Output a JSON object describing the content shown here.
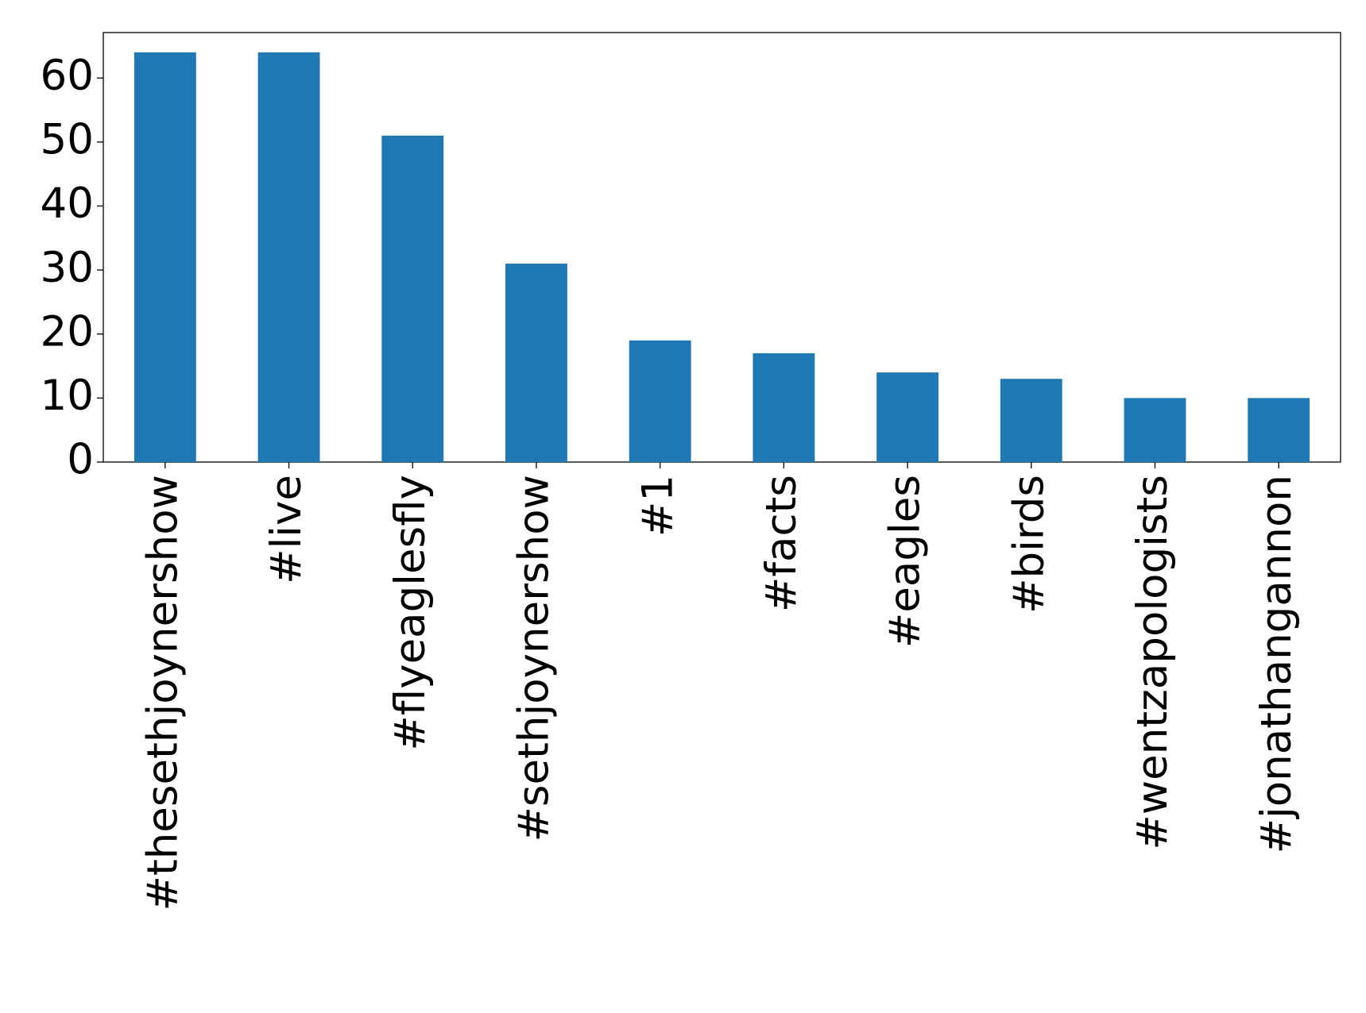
{
  "chart_data": {
    "type": "bar",
    "categories": [
      "#thesethjoynershow",
      "#live",
      "#flyeaglesfly",
      "#sethjoynershow",
      "#1",
      "#facts",
      "#eagles",
      "#birds",
      "#wentzapologists",
      "#jonathangannon"
    ],
    "values": [
      64,
      64,
      51,
      31,
      19,
      17,
      14,
      13,
      10,
      10
    ],
    "color": "#1f77b4",
    "ylim": [
      0,
      67.1
    ],
    "yticks": [
      0,
      10,
      20,
      30,
      40,
      50,
      60
    ],
    "grid": false
  }
}
